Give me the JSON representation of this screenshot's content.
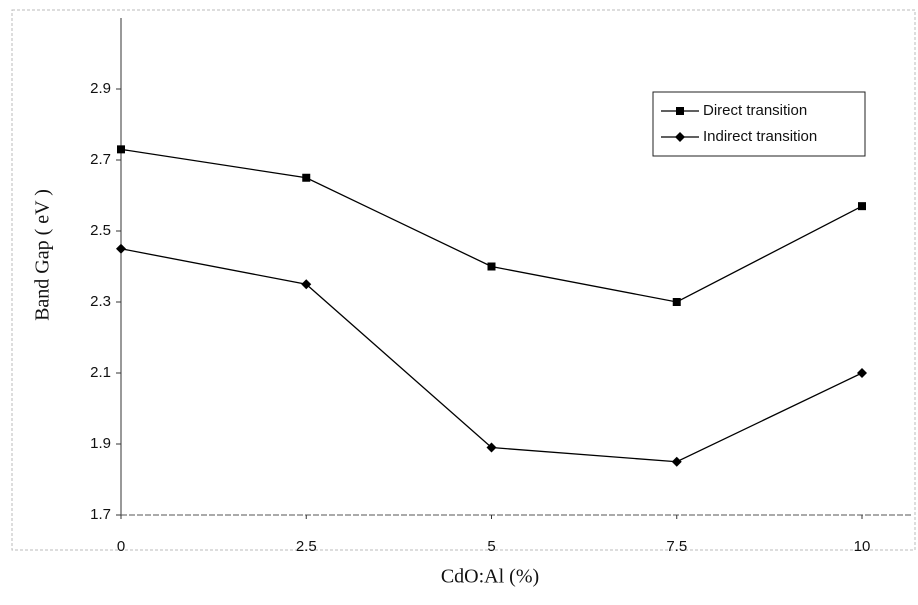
{
  "chart_data": {
    "type": "line",
    "x": [
      0,
      2.5,
      5,
      7.5,
      10
    ],
    "xlim": [
      0,
      10
    ],
    "xticks": [
      0,
      2.5,
      5,
      7.5,
      10
    ],
    "ylim": [
      1.7,
      3.1
    ],
    "yticks": [
      1.7,
      1.9,
      2.1,
      2.3,
      2.5,
      2.7,
      2.9
    ],
    "xlabel": "CdO:Al (%)",
    "ylabel": "Band Gap ( eV )",
    "legend": "top-right",
    "series": [
      {
        "name": "Direct transition",
        "color": "#000000",
        "marker": "square",
        "values": [
          2.73,
          2.65,
          2.4,
          2.3,
          2.57
        ]
      },
      {
        "name": "Indirect transition",
        "color": "#000000",
        "marker": "diamond",
        "values": [
          2.45,
          2.35,
          1.89,
          1.85,
          2.1
        ]
      }
    ]
  }
}
